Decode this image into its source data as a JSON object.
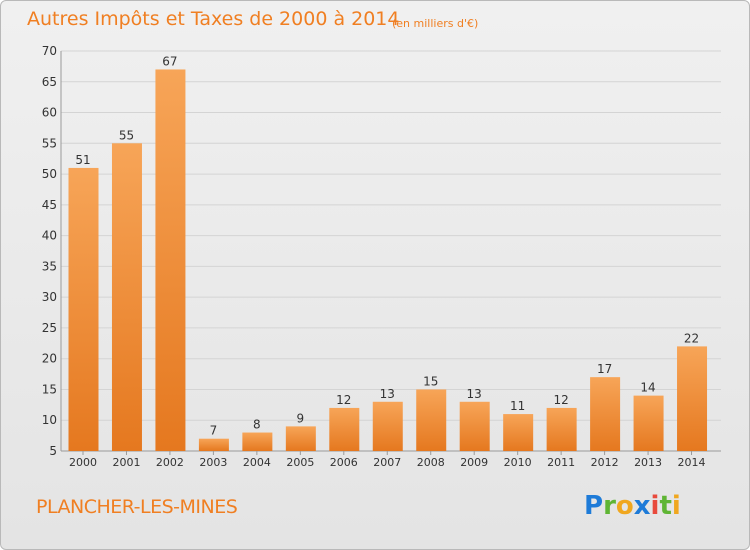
{
  "header": {
    "title": "Autres Impôts et Taxes de 2000 à 2014",
    "subtitle": "(en milliers d'€)"
  },
  "footer": {
    "commune": "PLANCHER-LES-MINES",
    "logo_text": "Proxiti"
  },
  "colors": {
    "accent": "#f07f22",
    "bar_light": "#f7a558",
    "bar_dark": "#e5781f",
    "grid": "#d4d4d4",
    "axis_text": "#333333"
  },
  "chart_data": {
    "type": "bar",
    "title": "Autres Impôts et Taxes de 2000 à 2014",
    "subtitle": "(en milliers d'€)",
    "xlabel": "",
    "ylabel": "",
    "ylim": [
      5,
      70
    ],
    "yticks": [
      5,
      10,
      15,
      20,
      25,
      30,
      35,
      40,
      45,
      50,
      55,
      60,
      65,
      70
    ],
    "grid": true,
    "categories": [
      "2000",
      "2001",
      "2002",
      "2003",
      "2004",
      "2005",
      "2006",
      "2007",
      "2008",
      "2009",
      "2010",
      "2011",
      "2012",
      "2013",
      "2014"
    ],
    "values": [
      51,
      55,
      67,
      7,
      8,
      9,
      12,
      13,
      15,
      13,
      11,
      12,
      17,
      14,
      22
    ]
  }
}
